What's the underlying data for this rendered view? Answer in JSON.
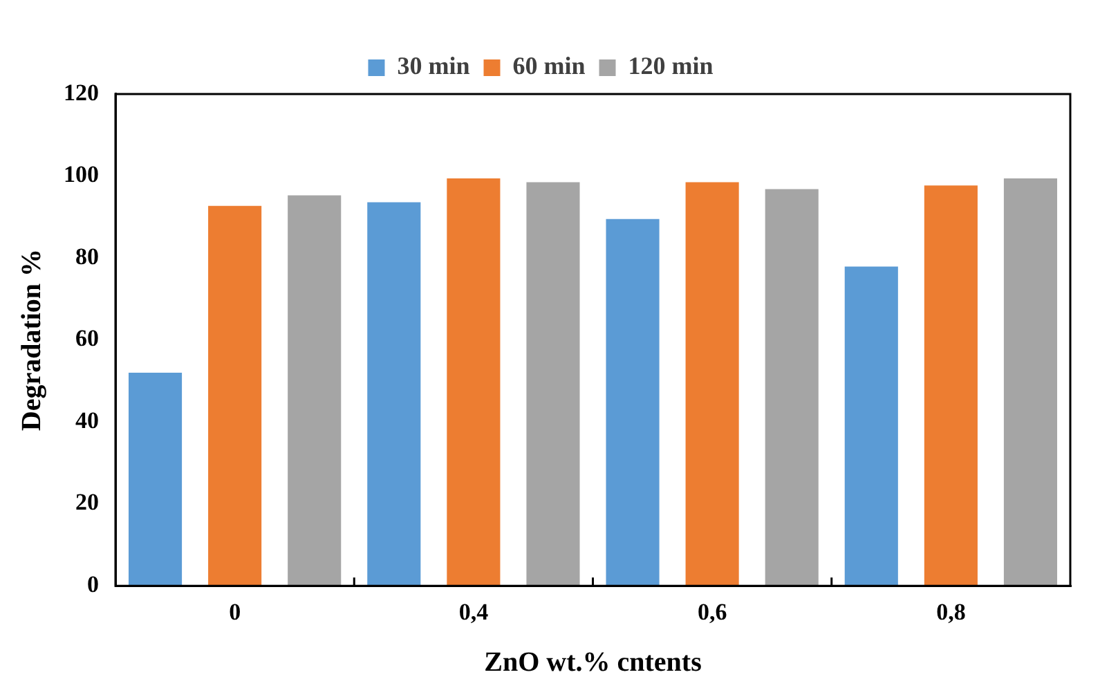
{
  "chart_data": {
    "type": "bar",
    "xlabel": "ZnO wt.% cntents",
    "ylabel": "Degradation %",
    "categories": [
      "0",
      "0,4",
      "0,6",
      "0,8"
    ],
    "series": [
      {
        "name": "30 min",
        "color": "#5b9bd5",
        "values": [
          52,
          93.6,
          89.5,
          77.9
        ]
      },
      {
        "name": "60 min",
        "color": "#ed7d31",
        "values": [
          92.7,
          99.4,
          98.5,
          97.7
        ]
      },
      {
        "name": "120 min",
        "color": "#a5a5a5",
        "values": [
          95.3,
          98.5,
          96.8,
          99.4
        ]
      }
    ],
    "ylim": [
      0,
      120
    ],
    "yticks": [
      0,
      20,
      40,
      60,
      80,
      100,
      120
    ],
    "grid": false,
    "legend": "top"
  }
}
